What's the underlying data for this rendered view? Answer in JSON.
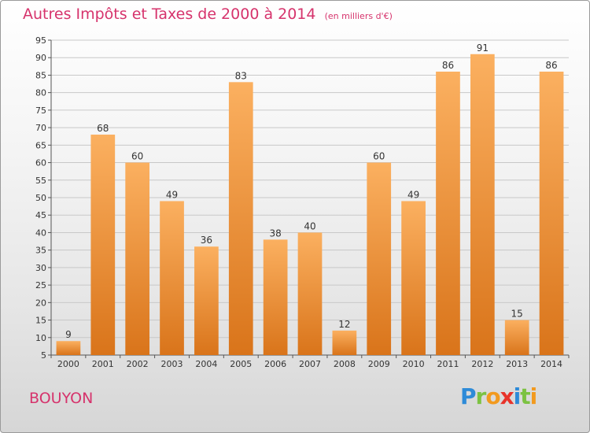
{
  "title": "Autres Impôts et Taxes de 2000 à 2014",
  "subtitle": "(en milliers d'€)",
  "commune": "BOUYON",
  "logo": {
    "text": "Proxiti",
    "letters": [
      {
        "char": "P",
        "color": "#2e8bd8"
      },
      {
        "char": "r",
        "color": "#7cc242"
      },
      {
        "char": "o",
        "color": "#f29a1f"
      },
      {
        "char": "x",
        "color": "#e8332a"
      },
      {
        "char": "i",
        "color": "#2e8bd8"
      },
      {
        "char": "t",
        "color": "#7cc242"
      },
      {
        "char": "i",
        "color": "#f29a1f"
      }
    ]
  },
  "colors": {
    "bar_light": "#fbb060",
    "bar_dark": "#d9741a",
    "title": "#d6336c",
    "grid": "#c8c8c8",
    "axis_text": "#333333"
  },
  "chart_data": {
    "type": "bar",
    "categories": [
      "2000",
      "2001",
      "2002",
      "2003",
      "2004",
      "2005",
      "2006",
      "2007",
      "2008",
      "2009",
      "2010",
      "2011",
      "2012",
      "2013",
      "2014"
    ],
    "values": [
      9,
      68,
      60,
      49,
      36,
      83,
      38,
      40,
      12,
      60,
      49,
      86,
      91,
      15,
      86
    ],
    "ylim": [
      5,
      95
    ],
    "yticks": [
      5,
      10,
      15,
      20,
      25,
      30,
      35,
      40,
      45,
      50,
      55,
      60,
      65,
      70,
      75,
      80,
      85,
      90,
      95
    ],
    "grid": true,
    "xlabel": "",
    "ylabel": ""
  }
}
